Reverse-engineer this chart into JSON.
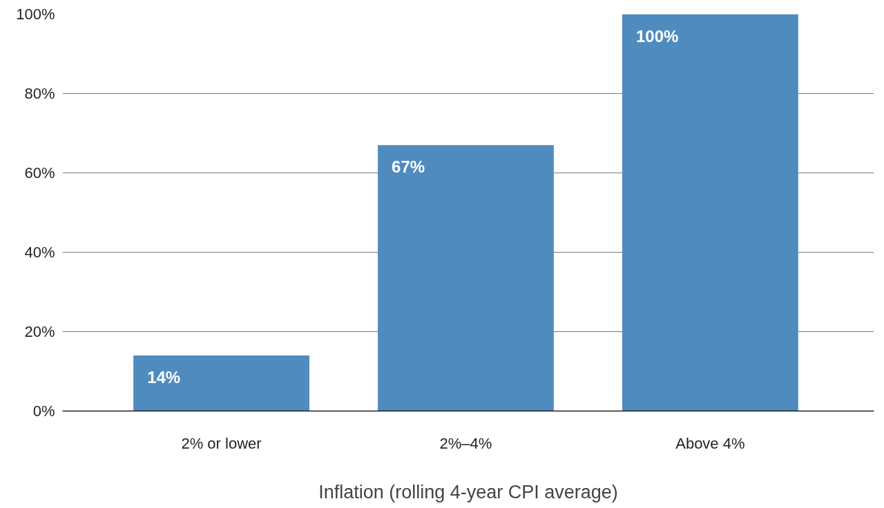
{
  "chart_data": {
    "type": "bar",
    "xlabel": "Inflation (rolling 4-year CPI average)",
    "categories": [
      "2% or lower",
      "2%–4%",
      "Above 4%"
    ],
    "values": [
      14,
      67,
      100
    ],
    "color": "#4f8bbf",
    "value_labels": [
      "14%",
      "67%",
      "100%"
    ],
    "ylim": [
      0,
      100
    ],
    "yticks": [
      {
        "value": 0,
        "label": "0%"
      },
      {
        "value": 20,
        "label": "20%"
      },
      {
        "value": 40,
        "label": "40%"
      },
      {
        "value": 60,
        "label": "60%"
      },
      {
        "value": 80,
        "label": "80%"
      },
      {
        "value": 100,
        "label": "100%"
      }
    ],
    "grid": "y"
  }
}
